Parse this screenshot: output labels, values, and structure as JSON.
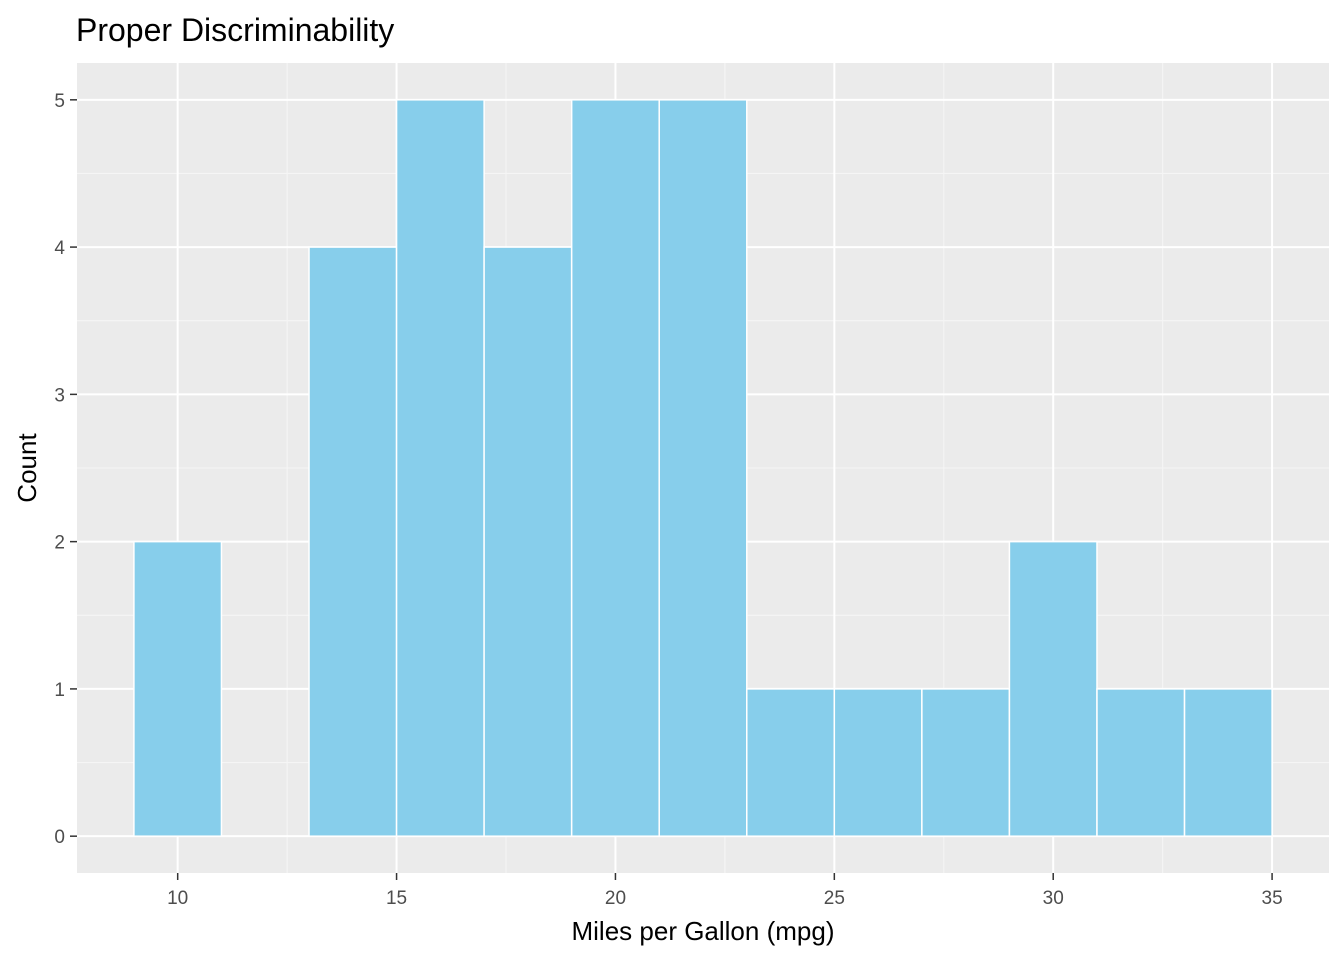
{
  "chart_data": {
    "type": "bar",
    "subtype": "histogram",
    "title": "Proper Discriminability",
    "xlabel": "Miles per Gallon (mpg)",
    "ylabel": "Count",
    "bin_width": 2,
    "bins": [
      {
        "start": 9,
        "end": 11,
        "count": 2
      },
      {
        "start": 11,
        "end": 13,
        "count": 0
      },
      {
        "start": 13,
        "end": 15,
        "count": 4
      },
      {
        "start": 15,
        "end": 17,
        "count": 5
      },
      {
        "start": 17,
        "end": 19,
        "count": 4
      },
      {
        "start": 19,
        "end": 21,
        "count": 5
      },
      {
        "start": 21,
        "end": 23,
        "count": 5
      },
      {
        "start": 23,
        "end": 25,
        "count": 1
      },
      {
        "start": 25,
        "end": 27,
        "count": 1
      },
      {
        "start": 27,
        "end": 29,
        "count": 1
      },
      {
        "start": 29,
        "end": 31,
        "count": 2
      },
      {
        "start": 31,
        "end": 33,
        "count": 1
      },
      {
        "start": 33,
        "end": 35,
        "count": 1
      }
    ],
    "xlim": [
      7.7,
      36.3
    ],
    "ylim": [
      -0.25,
      5.25
    ],
    "x_ticks": [
      10,
      15,
      20,
      25,
      30,
      35
    ],
    "x_tick_labels": [
      "10",
      "15",
      "20",
      "25",
      "30",
      "35"
    ],
    "y_ticks": [
      0,
      1,
      2,
      3,
      4,
      5
    ],
    "y_tick_labels": [
      "0",
      "1",
      "2",
      "3",
      "4",
      "5"
    ],
    "grid": true,
    "legend": "none",
    "colors": {
      "bar_fill": "#87CEEB",
      "bar_outline": "#FFFFFF",
      "panel_background": "#EBEBEB",
      "grid_major": "#FFFFFF",
      "grid_minor": "#F5F5F5"
    }
  }
}
